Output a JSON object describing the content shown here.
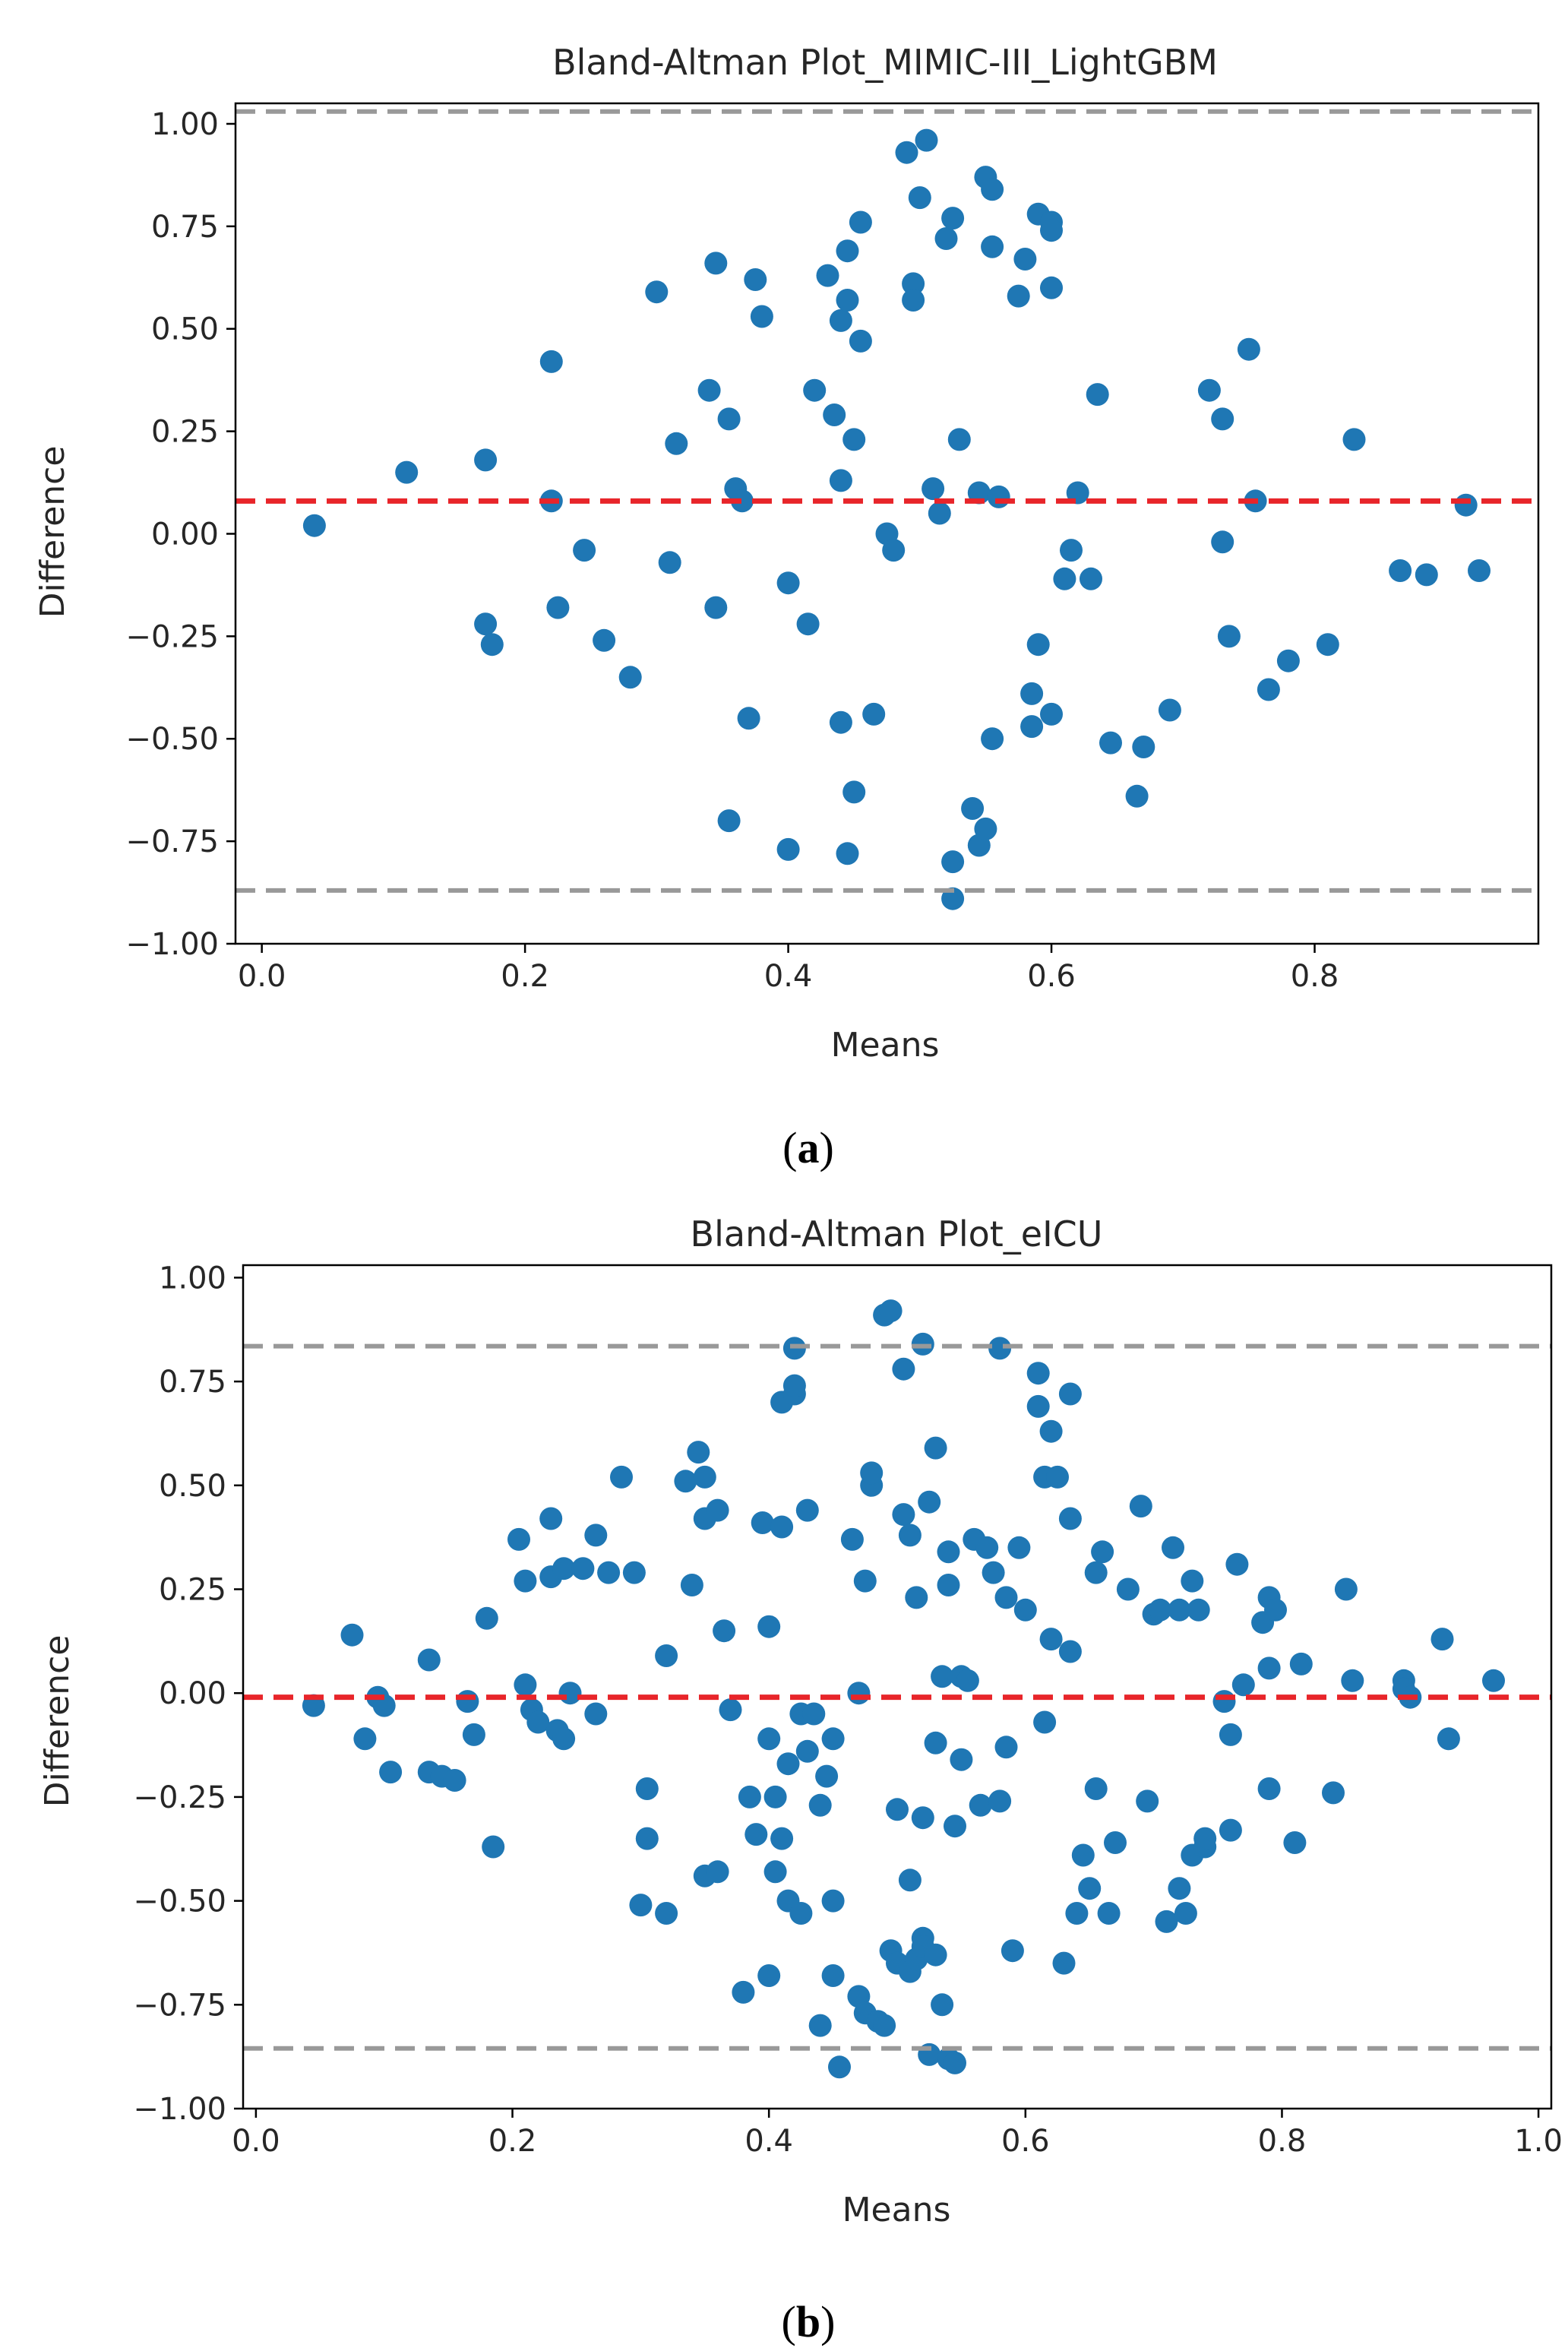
{
  "chart_data": [
    {
      "type": "scatter",
      "title": "Bland-Altman Plot_MIMIC-III_LightGBM",
      "xlabel": "Means",
      "ylabel": "Difference",
      "caption": {
        "open": "(",
        "letter": "a",
        "close": ")"
      },
      "xlim": [
        -0.02,
        0.97
      ],
      "ylim": [
        -1.0,
        1.05
      ],
      "xticks": [
        0.0,
        0.2,
        0.4,
        0.6,
        0.8
      ],
      "xtick_labels": [
        "0.0",
        "0.2",
        "0.4",
        "0.6",
        "0.8"
      ],
      "yticks": [
        -1.0,
        -0.75,
        -0.5,
        -0.25,
        0.0,
        0.25,
        0.5,
        0.75,
        1.0
      ],
      "ytick_labels": [
        "−1.00",
        "−0.75",
        "−0.50",
        "−0.25",
        "0.00",
        "0.25",
        "0.50",
        "0.75",
        "1.00"
      ],
      "mean_line": 0.08,
      "upper_loa": 1.03,
      "lower_loa": -0.87,
      "colors": {
        "points": "#1f77b4",
        "mean": "#e8252a",
        "loa": "#999999"
      },
      "points": [
        [
          0.04,
          0.02
        ],
        [
          0.11,
          0.15
        ],
        [
          0.17,
          -0.22
        ],
        [
          0.17,
          0.18
        ],
        [
          0.175,
          -0.27
        ],
        [
          0.22,
          0.42
        ],
        [
          0.22,
          0.08
        ],
        [
          0.225,
          -0.18
        ],
        [
          0.245,
          -0.04
        ],
        [
          0.26,
          -0.26
        ],
        [
          0.28,
          -0.35
        ],
        [
          0.3,
          0.59
        ],
        [
          0.31,
          -0.07
        ],
        [
          0.315,
          0.22
        ],
        [
          0.34,
          0.35
        ],
        [
          0.345,
          0.66
        ],
        [
          0.345,
          -0.18
        ],
        [
          0.355,
          0.28
        ],
        [
          0.355,
          -0.7
        ],
        [
          0.36,
          0.11
        ],
        [
          0.365,
          0.08
        ],
        [
          0.37,
          -0.45
        ],
        [
          0.375,
          0.62
        ],
        [
          0.38,
          0.53
        ],
        [
          0.4,
          -0.77
        ],
        [
          0.4,
          -0.12
        ],
        [
          0.415,
          -0.22
        ],
        [
          0.42,
          0.35
        ],
        [
          0.43,
          0.63
        ],
        [
          0.435,
          0.29
        ],
        [
          0.44,
          -0.46
        ],
        [
          0.44,
          0.13
        ],
        [
          0.44,
          0.52
        ],
        [
          0.445,
          0.57
        ],
        [
          0.445,
          0.69
        ],
        [
          0.445,
          -0.78
        ],
        [
          0.45,
          0.23
        ],
        [
          0.45,
          -0.63
        ],
        [
          0.455,
          0.76
        ],
        [
          0.455,
          0.47
        ],
        [
          0.465,
          -0.44
        ],
        [
          0.475,
          0.0
        ],
        [
          0.48,
          -0.04
        ],
        [
          0.49,
          0.93
        ],
        [
          0.495,
          0.61
        ],
        [
          0.495,
          0.57
        ],
        [
          0.5,
          0.82
        ],
        [
          0.505,
          0.96
        ],
        [
          0.51,
          0.11
        ],
        [
          0.515,
          0.05
        ],
        [
          0.52,
          0.72
        ],
        [
          0.525,
          -0.8
        ],
        [
          0.525,
          0.77
        ],
        [
          0.525,
          -0.89
        ],
        [
          0.53,
          0.23
        ],
        [
          0.54,
          -0.67
        ],
        [
          0.545,
          -0.76
        ],
        [
          0.545,
          0.1
        ],
        [
          0.55,
          0.87
        ],
        [
          0.55,
          -0.72
        ],
        [
          0.555,
          0.84
        ],
        [
          0.555,
          0.7
        ],
        [
          0.555,
          -0.5
        ],
        [
          0.56,
          0.09
        ],
        [
          0.575,
          0.58
        ],
        [
          0.58,
          0.67
        ],
        [
          0.585,
          -0.39
        ],
        [
          0.585,
          -0.47
        ],
        [
          0.59,
          0.78
        ],
        [
          0.59,
          -0.27
        ],
        [
          0.6,
          0.76
        ],
        [
          0.6,
          0.74
        ],
        [
          0.6,
          -0.44
        ],
        [
          0.6,
          0.6
        ],
        [
          0.61,
          -0.11
        ],
        [
          0.615,
          -0.04
        ],
        [
          0.62,
          0.1
        ],
        [
          0.63,
          -0.11
        ],
        [
          0.635,
          0.34
        ],
        [
          0.645,
          -0.51
        ],
        [
          0.665,
          -0.64
        ],
        [
          0.67,
          -0.52
        ],
        [
          0.69,
          -0.43
        ],
        [
          0.72,
          0.35
        ],
        [
          0.73,
          0.28
        ],
        [
          0.73,
          -0.02
        ],
        [
          0.735,
          -0.25
        ],
        [
          0.75,
          0.45
        ],
        [
          0.755,
          0.08
        ],
        [
          0.765,
          -0.38
        ],
        [
          0.78,
          -0.31
        ],
        [
          0.81,
          -0.27
        ],
        [
          0.83,
          0.23
        ],
        [
          0.865,
          -0.09
        ],
        [
          0.885,
          -0.1
        ],
        [
          0.915,
          0.07
        ],
        [
          0.925,
          -0.09
        ]
      ]
    },
    {
      "type": "scatter",
      "title": "Bland-Altman Plot_eICU",
      "xlabel": "Means",
      "ylabel": "Difference",
      "caption": {
        "open": "(",
        "letter": "b",
        "close": ")"
      },
      "xlim": [
        -0.01,
        1.01
      ],
      "ylim": [
        -1.0,
        1.03
      ],
      "xticks": [
        0.0,
        0.2,
        0.4,
        0.6,
        0.8,
        1.0
      ],
      "xtick_labels": [
        "0.0",
        "0.2",
        "0.4",
        "0.6",
        "0.8",
        "1.0"
      ],
      "yticks": [
        -1.0,
        -0.75,
        -0.5,
        -0.25,
        0.0,
        0.25,
        0.5,
        0.75,
        1.0
      ],
      "ytick_labels": [
        "−1.00",
        "−0.75",
        "−0.50",
        "−0.25",
        "0.00",
        "0.25",
        "0.50",
        "0.75",
        "1.00"
      ],
      "mean_line": -0.01,
      "upper_loa": 0.835,
      "lower_loa": -0.855,
      "colors": {
        "points": "#1f77b4",
        "mean": "#e8252a",
        "loa": "#999999"
      },
      "points": [
        [
          0.045,
          -0.03
        ],
        [
          0.075,
          0.14
        ],
        [
          0.085,
          -0.11
        ],
        [
          0.095,
          -0.01
        ],
        [
          0.1,
          -0.03
        ],
        [
          0.105,
          -0.19
        ],
        [
          0.135,
          -0.19
        ],
        [
          0.135,
          0.08
        ],
        [
          0.145,
          -0.2
        ],
        [
          0.155,
          -0.21
        ],
        [
          0.165,
          -0.02
        ],
        [
          0.17,
          -0.1
        ],
        [
          0.18,
          0.18
        ],
        [
          0.185,
          -0.37
        ],
        [
          0.205,
          0.37
        ],
        [
          0.21,
          0.27
        ],
        [
          0.21,
          0.02
        ],
        [
          0.215,
          -0.04
        ],
        [
          0.22,
          -0.07
        ],
        [
          0.23,
          0.42
        ],
        [
          0.23,
          0.28
        ],
        [
          0.235,
          -0.09
        ],
        [
          0.24,
          -0.11
        ],
        [
          0.24,
          0.3
        ],
        [
          0.245,
          0.0
        ],
        [
          0.255,
          0.3
        ],
        [
          0.265,
          0.38
        ],
        [
          0.265,
          -0.05
        ],
        [
          0.275,
          0.29
        ],
        [
          0.285,
          0.52
        ],
        [
          0.295,
          0.29
        ],
        [
          0.3,
          -0.51
        ],
        [
          0.305,
          -0.23
        ],
        [
          0.305,
          -0.35
        ],
        [
          0.32,
          0.09
        ],
        [
          0.32,
          -0.53
        ],
        [
          0.335,
          0.51
        ],
        [
          0.34,
          0.26
        ],
        [
          0.345,
          0.58
        ],
        [
          0.35,
          0.52
        ],
        [
          0.35,
          0.42
        ],
        [
          0.35,
          -0.44
        ],
        [
          0.36,
          0.44
        ],
        [
          0.36,
          -0.43
        ],
        [
          0.365,
          0.15
        ],
        [
          0.37,
          -0.04
        ],
        [
          0.38,
          -0.72
        ],
        [
          0.385,
          -0.25
        ],
        [
          0.39,
          -0.34
        ],
        [
          0.395,
          0.41
        ],
        [
          0.4,
          -0.68
        ],
        [
          0.4,
          0.16
        ],
        [
          0.4,
          -0.11
        ],
        [
          0.405,
          -0.25
        ],
        [
          0.405,
          -0.43
        ],
        [
          0.41,
          0.4
        ],
        [
          0.41,
          0.7
        ],
        [
          0.41,
          -0.35
        ],
        [
          0.415,
          -0.5
        ],
        [
          0.415,
          -0.17
        ],
        [
          0.42,
          0.72
        ],
        [
          0.42,
          0.74
        ],
        [
          0.42,
          0.83
        ],
        [
          0.425,
          -0.05
        ],
        [
          0.425,
          -0.53
        ],
        [
          0.43,
          0.44
        ],
        [
          0.43,
          -0.14
        ],
        [
          0.435,
          -0.05
        ],
        [
          0.44,
          -0.8
        ],
        [
          0.44,
          -0.27
        ],
        [
          0.445,
          -0.2
        ],
        [
          0.45,
          -0.11
        ],
        [
          0.45,
          -0.5
        ],
        [
          0.45,
          -0.68
        ],
        [
          0.455,
          -0.9
        ],
        [
          0.465,
          0.37
        ],
        [
          0.47,
          -0.73
        ],
        [
          0.47,
          0.0
        ],
        [
          0.475,
          0.27
        ],
        [
          0.475,
          -0.77
        ],
        [
          0.48,
          0.5
        ],
        [
          0.48,
          0.53
        ],
        [
          0.485,
          -0.79
        ],
        [
          0.49,
          -0.8
        ],
        [
          0.49,
          0.91
        ],
        [
          0.495,
          0.92
        ],
        [
          0.495,
          -0.62
        ],
        [
          0.5,
          -0.28
        ],
        [
          0.5,
          -0.65
        ],
        [
          0.505,
          0.43
        ],
        [
          0.505,
          0.78
        ],
        [
          0.51,
          0.38
        ],
        [
          0.51,
          -0.45
        ],
        [
          0.51,
          -0.67
        ],
        [
          0.515,
          0.23
        ],
        [
          0.515,
          -0.64
        ],
        [
          0.52,
          0.84
        ],
        [
          0.52,
          -0.3
        ],
        [
          0.52,
          -0.59
        ],
        [
          0.52,
          -0.61
        ],
        [
          0.525,
          0.46
        ],
        [
          0.525,
          -0.87
        ],
        [
          0.53,
          0.59
        ],
        [
          0.53,
          -0.12
        ],
        [
          0.53,
          -0.63
        ],
        [
          0.535,
          -0.75
        ],
        [
          0.535,
          0.04
        ],
        [
          0.54,
          -0.88
        ],
        [
          0.54,
          0.26
        ],
        [
          0.54,
          0.34
        ],
        [
          0.545,
          -0.32
        ],
        [
          0.545,
          -0.89
        ],
        [
          0.55,
          0.04
        ],
        [
          0.55,
          -0.16
        ],
        [
          0.555,
          0.03
        ],
        [
          0.56,
          0.37
        ],
        [
          0.565,
          -0.27
        ],
        [
          0.57,
          0.35
        ],
        [
          0.575,
          0.29
        ],
        [
          0.58,
          0.83
        ],
        [
          0.58,
          -0.26
        ],
        [
          0.585,
          0.23
        ],
        [
          0.585,
          -0.13
        ],
        [
          0.59,
          -0.62
        ],
        [
          0.595,
          0.35
        ],
        [
          0.6,
          0.2
        ],
        [
          0.61,
          0.77
        ],
        [
          0.61,
          0.69
        ],
        [
          0.615,
          0.52
        ],
        [
          0.615,
          -0.07
        ],
        [
          0.62,
          0.63
        ],
        [
          0.62,
          0.13
        ],
        [
          0.625,
          0.52
        ],
        [
          0.63,
          -0.65
        ],
        [
          0.635,
          0.42
        ],
        [
          0.635,
          0.1
        ],
        [
          0.635,
          0.72
        ],
        [
          0.64,
          -0.53
        ],
        [
          0.645,
          -0.39
        ],
        [
          0.65,
          -0.47
        ],
        [
          0.655,
          0.29
        ],
        [
          0.655,
          -0.23
        ],
        [
          0.66,
          0.34
        ],
        [
          0.665,
          -0.53
        ],
        [
          0.67,
          -0.36
        ],
        [
          0.68,
          0.25
        ],
        [
          0.69,
          0.45
        ],
        [
          0.695,
          -0.26
        ],
        [
          0.7,
          0.19
        ],
        [
          0.705,
          0.2
        ],
        [
          0.71,
          -0.55
        ],
        [
          0.715,
          0.35
        ],
        [
          0.72,
          0.2
        ],
        [
          0.72,
          -0.47
        ],
        [
          0.725,
          -0.53
        ],
        [
          0.73,
          -0.39
        ],
        [
          0.73,
          0.27
        ],
        [
          0.735,
          0.2
        ],
        [
          0.74,
          -0.37
        ],
        [
          0.74,
          -0.35
        ],
        [
          0.755,
          -0.02
        ],
        [
          0.76,
          -0.1
        ],
        [
          0.76,
          -0.33
        ],
        [
          0.765,
          0.31
        ],
        [
          0.77,
          0.02
        ],
        [
          0.785,
          0.17
        ],
        [
          0.79,
          -0.23
        ],
        [
          0.79,
          0.06
        ],
        [
          0.79,
          0.23
        ],
        [
          0.795,
          0.2
        ],
        [
          0.81,
          -0.36
        ],
        [
          0.815,
          0.07
        ],
        [
          0.84,
          -0.24
        ],
        [
          0.85,
          0.25
        ],
        [
          0.855,
          0.03
        ],
        [
          0.895,
          0.03
        ],
        [
          0.895,
          0.01
        ],
        [
          0.9,
          -0.01
        ],
        [
          0.925,
          0.13
        ],
        [
          0.93,
          -0.11
        ],
        [
          0.965,
          0.03
        ]
      ]
    }
  ]
}
